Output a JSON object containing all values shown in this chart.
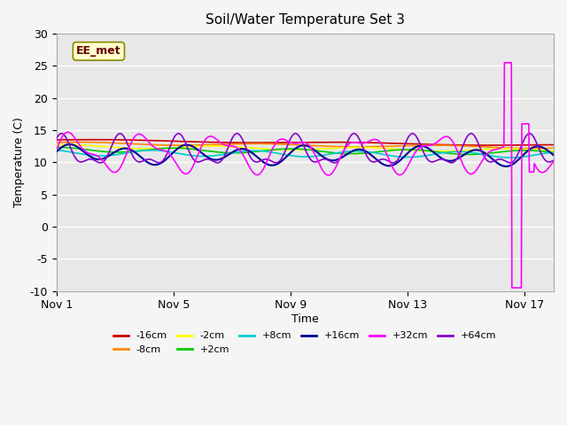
{
  "title": "Soil/Water Temperature Set 3",
  "xlabel": "Time",
  "ylabel": "Temperature (C)",
  "xlim": [
    0,
    17
  ],
  "ylim": [
    -10,
    30
  ],
  "yticks": [
    -10,
    -5,
    0,
    5,
    10,
    15,
    20,
    25,
    30
  ],
  "xtick_labels": [
    "Nov 1",
    "Nov 5",
    "Nov 9",
    "Nov 13",
    "Nov 17"
  ],
  "xtick_positions": [
    0,
    4,
    8,
    12,
    16
  ],
  "annotation": "EE_met",
  "background_color": "#e8e8e8",
  "series": {
    "-16cm": {
      "color": "#cc0000"
    },
    "-8cm": {
      "color": "#ff8800"
    },
    "-2cm": {
      "color": "#ffff00"
    },
    "+2cm": {
      "color": "#00cc00"
    },
    "+8cm": {
      "color": "#00cccc"
    },
    "+16cm": {
      "color": "#000099"
    },
    "+32cm": {
      "color": "#ff00ff"
    },
    "+64cm": {
      "color": "#8800cc"
    }
  },
  "legend_order": [
    "-16cm",
    "-8cm",
    "-2cm",
    "+2cm",
    "+8cm",
    "+16cm",
    "+32cm",
    "+64cm"
  ]
}
